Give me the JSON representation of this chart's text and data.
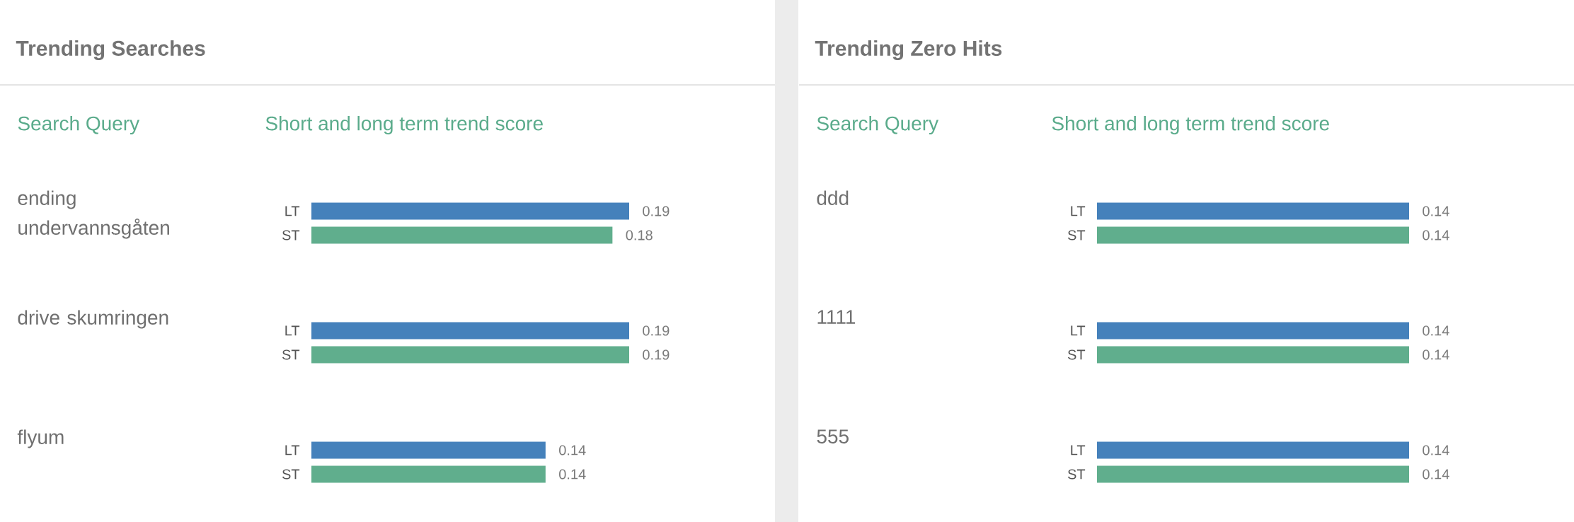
{
  "chart_data": [
    {
      "type": "bar",
      "orientation": "horizontal",
      "title": "Trending Searches",
      "ylabel": "Search Query",
      "xlabel": "Short and long term trend score",
      "categories": [
        "ending undervannsgåten",
        "drive skumringen",
        "flyum"
      ],
      "tick_labels": "y",
      "data_labels": true,
      "series": [
        {
          "name": "LT",
          "color": "#4581bb",
          "values": [
            0.19,
            0.19,
            0.14
          ]
        },
        {
          "name": "ST",
          "color": "#60ae8d",
          "values": [
            0.18,
            0.19,
            0.14
          ]
        }
      ]
    },
    {
      "type": "bar",
      "orientation": "horizontal",
      "title": "Trending Zero Hits",
      "ylabel": "Search Query",
      "xlabel": "Short and long term trend score",
      "categories": [
        "ddd",
        "1111",
        "555"
      ],
      "tick_labels": "y",
      "data_labels": true,
      "series": [
        {
          "name": "LT",
          "color": "#4581bb",
          "values": [
            0.14,
            0.14,
            0.14
          ]
        },
        {
          "name": "ST",
          "color": "#60ae8d",
          "values": [
            0.14,
            0.14,
            0.14
          ]
        }
      ]
    }
  ]
}
